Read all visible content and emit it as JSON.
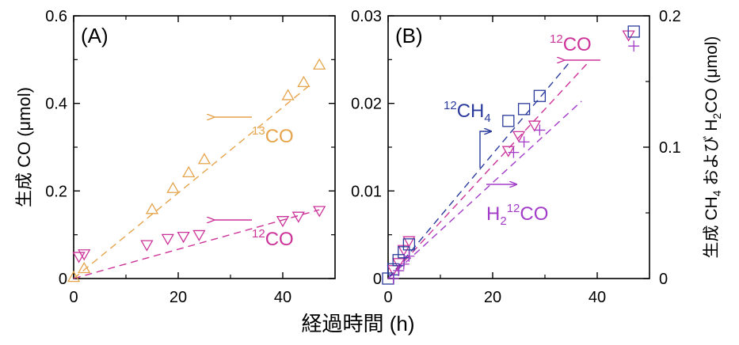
{
  "figure": {
    "xlabel": "経過時間 (h)"
  },
  "chart_data": [
    {
      "type": "scatter",
      "panel_label": "(A)",
      "ylabel": "生成 CO (μmol)",
      "xlim": [
        0,
        50
      ],
      "ylim": [
        0,
        0.6
      ],
      "xticks": [
        0,
        20,
        40
      ],
      "xtick_labels": [
        "0",
        "20",
        "40"
      ],
      "yticks": [
        0,
        0.2,
        0.4,
        0.6
      ],
      "ytick_labels": [
        "0",
        "0.2",
        "0.4",
        "0.6"
      ],
      "grid": false,
      "series": [
        {
          "label_pre": "13",
          "label_main": "CO",
          "color": "#e5a44b",
          "marker": "triangle-up",
          "x": [
            0,
            2,
            15,
            19,
            22,
            25,
            41,
            44,
            47
          ],
          "y": [
            0.003,
            0.023,
            0.158,
            0.206,
            0.242,
            0.272,
            0.418,
            0.448,
            0.488
          ],
          "fit": [
            [
              0,
              0
            ],
            [
              45,
              0.44
            ]
          ],
          "arrow": "left"
        },
        {
          "label_pre": "12",
          "label_main": "CO",
          "color": "#cc3399",
          "marker": "triangle-down",
          "x": [
            1,
            2,
            14,
            18,
            21,
            24,
            40,
            43,
            47
          ],
          "y": [
            0.05,
            0.056,
            0.077,
            0.091,
            0.096,
            0.1,
            0.132,
            0.142,
            0.155
          ],
          "fit": [
            [
              0,
              0
            ],
            [
              47,
              0.157
            ]
          ],
          "arrow": "left"
        }
      ]
    },
    {
      "type": "scatter",
      "panel_label": "(B)",
      "ylabel_right_pre": "生成 CH",
      "ylabel_right_sub": "4",
      "ylabel_right_mid": " および H",
      "ylabel_right_sub2": "2",
      "ylabel_right_post": "CO (μmol)",
      "xlim": [
        0,
        50
      ],
      "ylim": [
        0,
        0.03
      ],
      "ylim_right": [
        0,
        0.2
      ],
      "xticks": [
        0,
        20,
        40
      ],
      "xtick_labels": [
        "0",
        "20",
        "40"
      ],
      "yticks": [
        0,
        0.01,
        0.02,
        0.03
      ],
      "ytick_labels": [
        "0",
        "0.01",
        "0.02",
        "0.03"
      ],
      "yticks_right": [
        0,
        0.1,
        0.2
      ],
      "ytick_labels_right": [
        "0",
        "0.1",
        "0.2"
      ],
      "grid": false,
      "series": [
        {
          "label_pre": "12",
          "label_main": "CO",
          "color": "#cc3399",
          "marker": "triangle-down",
          "axis": "left",
          "x": [
            1,
            2,
            3,
            4,
            23,
            25,
            28,
            46
          ],
          "y": [
            0.001,
            0.0018,
            0.0033,
            0.0043,
            0.0146,
            0.0163,
            0.0175,
            0.0278
          ],
          "fit": [
            [
              0,
              0
            ],
            [
              38,
              0.0245
            ]
          ],
          "arrow": "left"
        },
        {
          "label_pre": "12",
          "label_main": "CH",
          "label_sub": "4",
          "color": "#2a3a9c",
          "marker": "square",
          "axis": "right",
          "x": [
            0,
            1,
            2,
            3,
            4,
            23,
            26,
            29,
            47
          ],
          "y": [
            0.0,
            0.007,
            0.014,
            0.02,
            0.026,
            0.12,
            0.129,
            0.139,
            0.188
          ],
          "fit": [
            [
              0,
              0
            ],
            [
              35,
              0.166
            ]
          ],
          "arrow": "right"
        },
        {
          "label_pre": "H",
          "label_sub": "2",
          "label_main": "12",
          "label_post": "CO",
          "color": "#a23bc8",
          "marker": "plus",
          "axis": "right",
          "x": [
            1,
            2,
            3,
            4,
            24,
            26,
            29,
            47
          ],
          "y": [
            0.0,
            0.006,
            0.011,
            0.017,
            0.096,
            0.104,
            0.113,
            0.177
          ],
          "fit": [
            [
              0,
              0
            ],
            [
              37,
              0.135
            ]
          ],
          "arrow": "right"
        }
      ]
    }
  ]
}
